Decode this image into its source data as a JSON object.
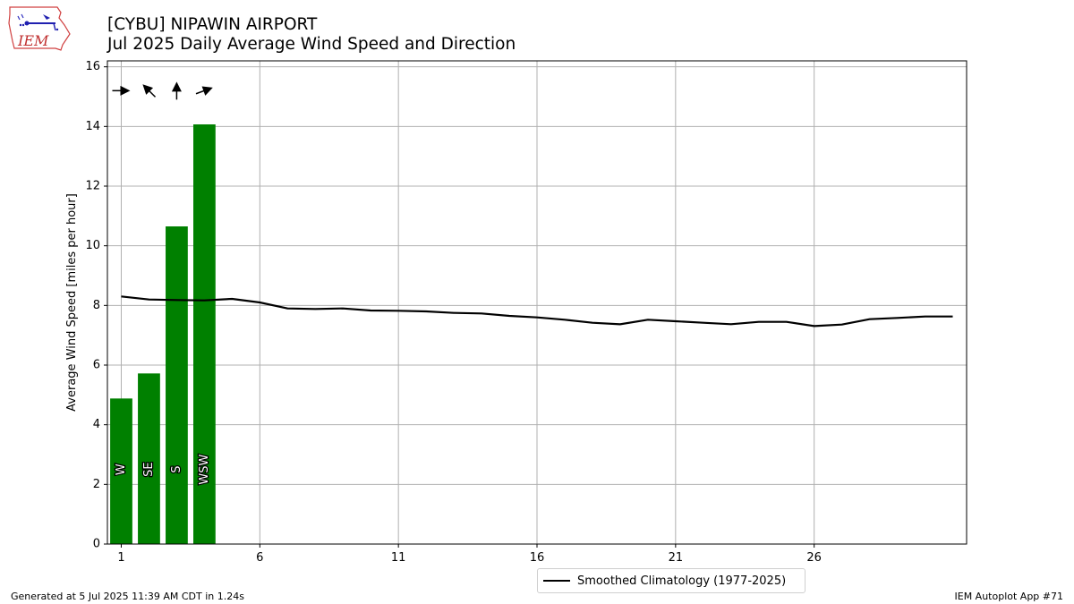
{
  "header": {
    "title_line1": "[CYBU] NIPAWIN AIRPORT",
    "title_line2": "Jul 2025 Daily Average Wind Speed and Direction"
  },
  "logo": {
    "text": "IEM",
    "icon": "iem-logo-icon"
  },
  "footer": {
    "generated": "Generated at 5 Jul 2025 11:39 AM CDT in 1.24s",
    "app": "IEM Autoplot App #71"
  },
  "legend": {
    "label": "Smoothed Climatology (1977-2025)"
  },
  "colors": {
    "bar": "#008000",
    "line": "#000000",
    "grid": "#b0b0b0"
  },
  "chart_data": {
    "type": "bar",
    "ylabel": "Average Wind Speed [miles per hour]",
    "xlabel": "",
    "ylim": [
      0,
      16.2
    ],
    "xlim": [
      0.5,
      31.5
    ],
    "xticks": [
      1,
      6,
      11,
      16,
      21,
      26
    ],
    "yticks": [
      0,
      2,
      4,
      6,
      8,
      10,
      12,
      14,
      16
    ],
    "grid": true,
    "legend_position": "bottom-center",
    "bars": [
      {
        "day": 1,
        "value": 4.88,
        "direction": "W",
        "arrow_angle": 270
      },
      {
        "day": 2,
        "value": 5.72,
        "direction": "SE",
        "arrow_angle": 135
      },
      {
        "day": 3,
        "value": 10.65,
        "direction": "S",
        "arrow_angle": 180
      },
      {
        "day": 4,
        "value": 14.07,
        "direction": "WSW",
        "arrow_angle": 250
      }
    ],
    "series": [
      {
        "name": "Smoothed Climatology (1977-2025)",
        "x": [
          1,
          2,
          3,
          4,
          5,
          6,
          7,
          8,
          9,
          10,
          11,
          12,
          13,
          14,
          15,
          16,
          17,
          18,
          19,
          20,
          21,
          22,
          23,
          24,
          25,
          26,
          27,
          28,
          29,
          30,
          31
        ],
        "values": [
          8.3,
          8.2,
          8.18,
          8.17,
          8.22,
          8.1,
          7.9,
          7.88,
          7.9,
          7.83,
          7.82,
          7.8,
          7.75,
          7.73,
          7.65,
          7.6,
          7.52,
          7.42,
          7.37,
          7.52,
          7.47,
          7.42,
          7.37,
          7.45,
          7.45,
          7.31,
          7.36,
          7.54,
          7.58,
          7.63,
          7.63
        ]
      }
    ]
  }
}
